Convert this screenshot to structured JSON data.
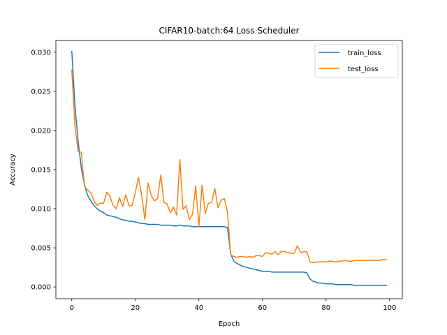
{
  "chart_data": {
    "type": "line",
    "title": "CIFAR10-batch:64 Loss Scheduler",
    "xlabel": "Epoch",
    "ylabel": "Accuracy",
    "xlim": [
      -5,
      104
    ],
    "ylim": [
      -0.0015,
      0.0315
    ],
    "xticks": [
      0,
      20,
      40,
      60,
      80,
      100
    ],
    "yticks": [
      0.0,
      0.005,
      0.01,
      0.015,
      0.02,
      0.025,
      0.03
    ],
    "ytick_labels": [
      "0.000",
      "0.005",
      "0.010",
      "0.015",
      "0.020",
      "0.025",
      "0.030"
    ],
    "grid": false,
    "legend_position": "top-right",
    "x": [
      0,
      1,
      2,
      3,
      4,
      5,
      6,
      7,
      8,
      9,
      10,
      11,
      12,
      13,
      14,
      15,
      16,
      17,
      18,
      19,
      20,
      21,
      22,
      23,
      24,
      25,
      26,
      27,
      28,
      29,
      30,
      31,
      32,
      33,
      34,
      35,
      36,
      37,
      38,
      39,
      40,
      41,
      42,
      43,
      44,
      45,
      46,
      47,
      48,
      49,
      50,
      51,
      52,
      53,
      54,
      55,
      56,
      57,
      58,
      59,
      60,
      61,
      62,
      63,
      64,
      65,
      66,
      67,
      68,
      69,
      70,
      71,
      72,
      73,
      74,
      75,
      76,
      77,
      78,
      79,
      80,
      81,
      82,
      83,
      84,
      85,
      86,
      87,
      88,
      89,
      90,
      91,
      92,
      93,
      94,
      95,
      96,
      97,
      98,
      99
    ],
    "series": [
      {
        "name": "train_loss",
        "color": "#1f77b4",
        "values": [
          0.0301,
          0.0232,
          0.0186,
          0.0152,
          0.013,
          0.0117,
          0.011,
          0.0104,
          0.01,
          0.0097,
          0.0095,
          0.0092,
          0.0091,
          0.009,
          0.0089,
          0.0087,
          0.0086,
          0.0085,
          0.0084,
          0.0084,
          0.0083,
          0.0082,
          0.0081,
          0.0081,
          0.008,
          0.008,
          0.008,
          0.008,
          0.0079,
          0.0079,
          0.0079,
          0.0079,
          0.0078,
          0.0078,
          0.0079,
          0.0078,
          0.0078,
          0.0078,
          0.0077,
          0.0077,
          0.0077,
          0.0077,
          0.0077,
          0.0077,
          0.0077,
          0.0077,
          0.0077,
          0.0077,
          0.0077,
          0.0076,
          0.0042,
          0.0033,
          0.003,
          0.0028,
          0.0026,
          0.0025,
          0.0024,
          0.0023,
          0.0022,
          0.0021,
          0.002,
          0.002,
          0.002,
          0.0019,
          0.0019,
          0.0019,
          0.0019,
          0.0019,
          0.0019,
          0.0019,
          0.0019,
          0.0019,
          0.0019,
          0.0019,
          0.0018,
          0.001,
          0.0007,
          0.0006,
          0.0005,
          0.0005,
          0.0004,
          0.0004,
          0.0004,
          0.0003,
          0.0003,
          0.0003,
          0.0003,
          0.0003,
          0.0003,
          0.0002,
          0.0002,
          0.0002,
          0.0002,
          0.0002,
          0.0002,
          0.0002,
          0.0002,
          0.0002,
          0.0002,
          0.0002
        ]
      },
      {
        "name": "test_loss",
        "color": "#ff7f0e",
        "values": [
          0.0277,
          0.0205,
          0.0173,
          0.0172,
          0.0128,
          0.0124,
          0.012,
          0.011,
          0.0104,
          0.0107,
          0.0107,
          0.0121,
          0.0116,
          0.0104,
          0.01,
          0.0114,
          0.0103,
          0.0118,
          0.0104,
          0.0104,
          0.0121,
          0.014,
          0.0117,
          0.0086,
          0.0133,
          0.0117,
          0.011,
          0.0113,
          0.0143,
          0.0108,
          0.0106,
          0.0095,
          0.0102,
          0.0092,
          0.0163,
          0.0099,
          0.0104,
          0.0086,
          0.0093,
          0.0129,
          0.0077,
          0.013,
          0.0094,
          0.0107,
          0.0108,
          0.0126,
          0.0101,
          0.0111,
          0.0113,
          0.0096,
          0.0041,
          0.0039,
          0.0038,
          0.0039,
          0.0039,
          0.0038,
          0.0039,
          0.0038,
          0.004,
          0.004,
          0.0039,
          0.0044,
          0.0043,
          0.0042,
          0.0045,
          0.0041,
          0.0046,
          0.0045,
          0.0044,
          0.0043,
          0.0043,
          0.0053,
          0.0044,
          0.0045,
          0.0045,
          0.0032,
          0.0031,
          0.0032,
          0.0032,
          0.0032,
          0.0032,
          0.0033,
          0.0033,
          0.0032,
          0.0033,
          0.0033,
          0.0034,
          0.0033,
          0.0033,
          0.0034,
          0.0034,
          0.0034,
          0.0034,
          0.0034,
          0.0034,
          0.0034,
          0.0034,
          0.0034,
          0.0035,
          0.0035
        ]
      }
    ]
  }
}
